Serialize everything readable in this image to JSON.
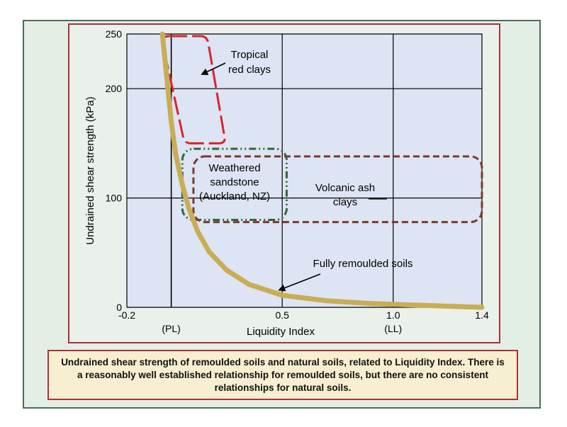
{
  "caption": "Undrained shear strength of remoulded soils and natural soils, related to Liquidity Index. There is a reasonably well established relationship for remoulded soils, but there are no consistent relationships for natural soils.",
  "colors": {
    "plot_background": "#dde4f3",
    "card_background": "#e3efe4",
    "frame_border": "#b0303a",
    "remoulded_curve": "#c8ad55",
    "tropical": "#d8252d",
    "weathered": "#2e6a3a",
    "volcanic": "#7a3a2a"
  },
  "chart_data": {
    "type": "line",
    "xlabel": "Liquidity Index",
    "ylabel": "Undrained shear strength (kPa)",
    "xlim": [
      -0.2,
      1.4
    ],
    "ylim": [
      0,
      250
    ],
    "x_ticks": [
      {
        "value": -0.2,
        "label": "-0.2",
        "sublabel": ""
      },
      {
        "value": 0.0,
        "label": "",
        "sublabel": "(PL)"
      },
      {
        "value": 0.5,
        "label": "0.5",
        "sublabel": ""
      },
      {
        "value": 1.0,
        "label": "1.0",
        "sublabel": "(LL)"
      },
      {
        "value": 1.4,
        "label": "1.4",
        "sublabel": ""
      }
    ],
    "y_ticks": [
      {
        "value": 0,
        "label": "0"
      },
      {
        "value": 100,
        "label": "100"
      },
      {
        "value": 200,
        "label": "200"
      },
      {
        "value": 250,
        "label": "250"
      }
    ],
    "grid": true,
    "series": [
      {
        "name": "Fully remoulded soils",
        "x": [
          -0.04,
          0.0,
          0.02,
          0.05,
          0.08,
          0.12,
          0.17,
          0.25,
          0.35,
          0.5,
          0.7,
          0.9,
          1.1,
          1.4
        ],
        "y": [
          250,
          170,
          140,
          112,
          90,
          69,
          51,
          34,
          21,
          11,
          6,
          3.5,
          2,
          0
        ]
      }
    ],
    "regions": [
      {
        "name": "Tropical red clays",
        "line_label": "Tropical\nred clays",
        "x0": -0.04,
        "x1": 0.24,
        "y0": 150,
        "y1": 250,
        "style": "long-dash",
        "shape": "skewed"
      },
      {
        "name": "Weathered sandstone (Auckland, NZ)",
        "line_label": "Weathered\nsandstone\n(Auckland, NZ)",
        "x0": 0.05,
        "x1": 0.52,
        "y0": 80,
        "y1": 145,
        "style": "dash-dot-dot"
      },
      {
        "name": "Volcanic ash clays",
        "line_label": "Volcanic ash\nclays",
        "x0": 0.1,
        "x1": 1.4,
        "y0": 78,
        "y1": 138,
        "style": "short-dash"
      }
    ],
    "annotations": [
      {
        "text": "Fully remoulded soils",
        "points_to": [
          0.57,
          12
        ]
      },
      {
        "text": "Tropical red clays",
        "points_to": [
          0.11,
          210
        ]
      }
    ]
  }
}
